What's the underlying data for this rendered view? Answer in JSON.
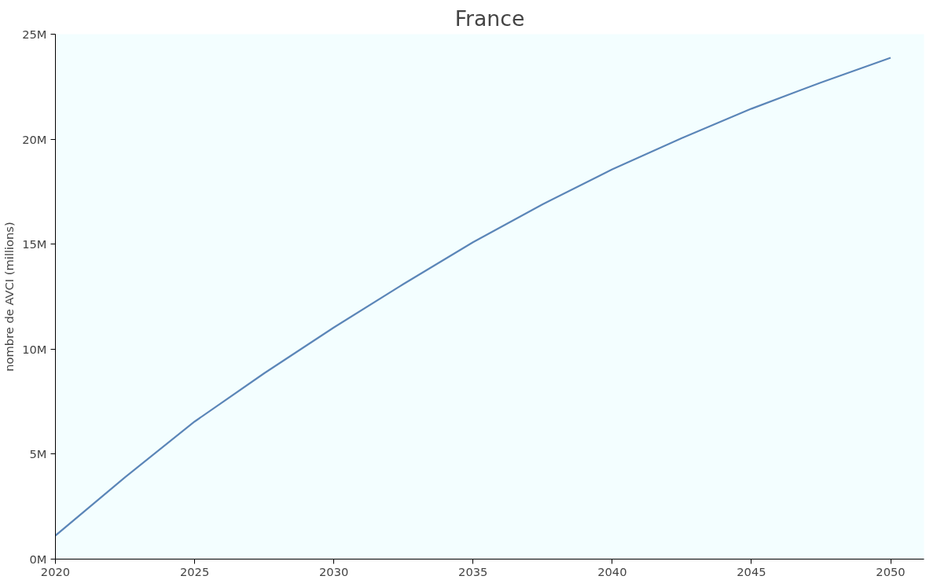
{
  "chart_data": {
    "type": "line",
    "title": "France",
    "ylabel": "nombre de AVCI (millions)",
    "x": [
      2020,
      2022.5,
      2025,
      2027.5,
      2030,
      2032.5,
      2035,
      2037.5,
      2040,
      2042.5,
      2045,
      2047.5,
      2050
    ],
    "series": [
      {
        "color": "#5b86b8",
        "values": [
          1.12,
          3.9,
          6.55,
          8.85,
          11.03,
          13.1,
          15.09,
          16.9,
          18.56,
          20.05,
          21.45,
          22.7,
          23.88
        ]
      }
    ],
    "xlim": [
      2020,
      2051.2
    ],
    "xticks": [
      2020,
      2025,
      2030,
      2035,
      2040,
      2045,
      2050
    ],
    "ylim": [
      0,
      25
    ],
    "yticks": [
      {
        "value": 0,
        "label": "0M"
      },
      {
        "value": 5,
        "label": "5M"
      },
      {
        "value": 10,
        "label": "10M"
      },
      {
        "value": 15,
        "label": "15M"
      },
      {
        "value": 20,
        "label": "20M"
      },
      {
        "value": 25,
        "label": "25M"
      }
    ],
    "grid": false,
    "line_style": "solid",
    "marker": "none"
  }
}
